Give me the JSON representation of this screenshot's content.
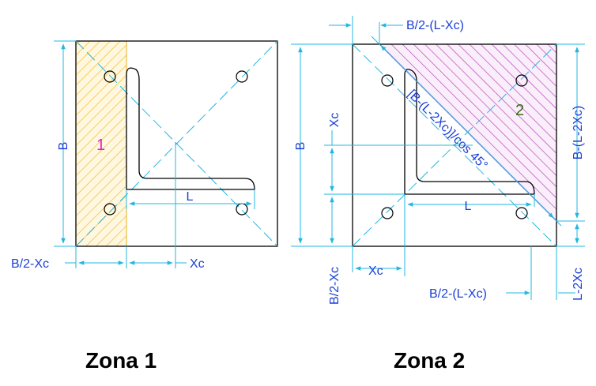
{
  "zone1": {
    "title": "Zona 1",
    "number": "1",
    "label_B": "B",
    "label_L": "L",
    "label_B2_minus_Xc": "B/2-Xc",
    "label_Xc": "Xc"
  },
  "zone2": {
    "title": "Zona 2",
    "number": "2",
    "label_top": "B/2-(L-Xc)",
    "label_B": "B",
    "label_Xc_vertical": "Xc",
    "label_B2_minus_Xc": "B/2-Xc",
    "label_Xc_bottom": "Xc",
    "label_L": "L",
    "label_bottom": "B/2-(L-Xc)",
    "label_right": "B-(L-2Xc)",
    "label_right_bottom": "L-2Xc",
    "label_diagonal": "[B-(L-2Xc)]/cos 45°"
  },
  "colors": {
    "dimension_text": "#1a3fd6",
    "dimension_lines": "#22b7e0",
    "zone1_hatch": "#f2c12e",
    "zone2_hatch": "#b13bb8",
    "zone1_number": "#e81ec8",
    "zone2_number": "#3a6b1a"
  }
}
